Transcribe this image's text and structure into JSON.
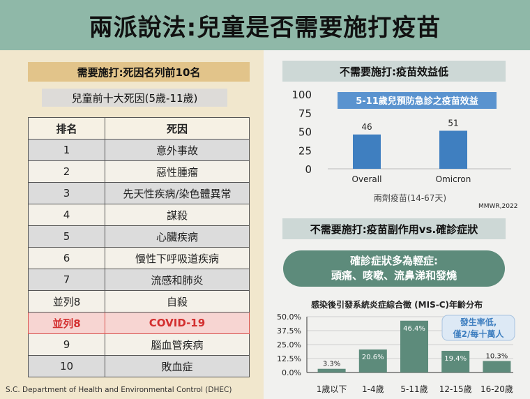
{
  "title": "兩派說法:兒童是否需要施打疫苗",
  "left": {
    "header": "需要施打:死因名列前10名",
    "subheader": "兒童前十大死因(5歲-11歲)",
    "table": {
      "columns": [
        "排名",
        "死因"
      ],
      "rows": [
        {
          "rank": "1",
          "cause": "意外事故"
        },
        {
          "rank": "2",
          "cause": "惡性腫瘤"
        },
        {
          "rank": "3",
          "cause": "先天性疾病/染色體異常"
        },
        {
          "rank": "4",
          "cause": "謀殺"
        },
        {
          "rank": "5",
          "cause": "心臟疾病"
        },
        {
          "rank": "6",
          "cause": "慢性下呼吸道疾病"
        },
        {
          "rank": "7",
          "cause": "流感和肺炎"
        },
        {
          "rank": "並列8",
          "cause": "自殺"
        },
        {
          "rank": "並列8",
          "cause": "COVID-19"
        },
        {
          "rank": "9",
          "cause": "腦血管疾病"
        },
        {
          "rank": "10",
          "cause": "敗血症"
        }
      ],
      "highlight_row": "COVID-19",
      "highlight_color": "#d32f2f"
    },
    "source": "S.C. Department of Health and Environmental Control (DHEC)"
  },
  "right": {
    "header1": "不需要施打:疫苗效益低",
    "header2": "不需要施打:疫苗副作用vs.確診症狀",
    "bubble_line1": "確診症狀多為輕症:",
    "bubble_line2": "頭痛、咳嗽、流鼻涕和發燒",
    "hist_title": "感染後引發系統炎症綜合徵 (MIS-C)年齡分布",
    "mmwr": "MMWR,2022",
    "note_line1": "發生率低,",
    "note_line2": "僅2/每十萬人"
  },
  "chart_data": [
    {
      "type": "bar",
      "title": "5-11歲兒預防急診之疫苗效益",
      "categories": [
        "Overall",
        "Omicron"
      ],
      "values": [
        46,
        51
      ],
      "xlabel": "兩劑疫苗(14-67天)",
      "ylabel": "",
      "yticks": [
        "0",
        "25",
        "50",
        "75",
        "100"
      ],
      "ylim": [
        0,
        100
      ],
      "grid": false,
      "bar_color": "#3f7fc0",
      "title_bg": "#5a93cf"
    },
    {
      "type": "bar",
      "title": "",
      "categories": [
        "1歲以下",
        "1-4歲",
        "5-11歲",
        "12-15歲",
        "16-20歲"
      ],
      "values": [
        3.3,
        20.6,
        46.4,
        19.4,
        10.3
      ],
      "value_labels": [
        "3.3%",
        "20.6%",
        "46.4%",
        "19.4%",
        "10.3%"
      ],
      "yticks": [
        "0.0%",
        "12.5%",
        "25.0%",
        "37.5%",
        "50.0%"
      ],
      "ylim": [
        0,
        50
      ],
      "grid": true,
      "bar_color": "#5d8b7b"
    }
  ]
}
